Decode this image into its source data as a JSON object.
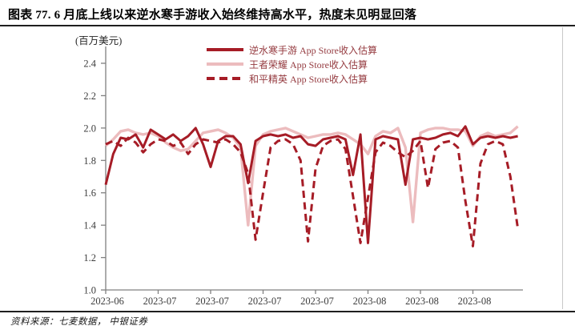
{
  "header": {
    "title": "图表 77. 6 月底上线以来逆水寒手游收入始终维持高水平，热度未见明显回落"
  },
  "footer": {
    "source": "资料来源：七麦数据， 中银证券"
  },
  "chart_data": {
    "type": "line",
    "title": "",
    "unit_label": "(百万美元)",
    "xlabel": "",
    "ylabel": "(百万美元)",
    "ylim": [
      1.0,
      2.4
    ],
    "yticks": [
      1.0,
      1.2,
      1.4,
      1.6,
      1.8,
      2.0,
      2.2,
      2.4
    ],
    "xticklabels": [
      "2023-06",
      "2023-07",
      "2023-07",
      "2023-07",
      "2023-07",
      "2023-08",
      "2023-08",
      "2023-08"
    ],
    "x_tick_interval_days": 7,
    "grid": false,
    "legend_position": "top-center",
    "axis_color": "#808080",
    "tick_label_color": "#3d3d3d",
    "series": [
      {
        "name": "逆水寒手游 App Store收入估算",
        "color": "#a61c26",
        "style": "solid",
        "values": [
          1.65,
          1.84,
          1.94,
          1.93,
          1.96,
          1.88,
          1.99,
          1.96,
          1.93,
          1.96,
          1.92,
          1.95,
          2.0,
          1.9,
          1.76,
          1.92,
          1.95,
          1.95,
          1.9,
          1.66,
          1.92,
          1.95,
          1.96,
          1.95,
          1.96,
          1.94,
          1.95,
          1.9,
          1.89,
          1.93,
          1.94,
          1.95,
          1.93,
          1.71,
          1.96,
          1.29,
          1.93,
          1.95,
          1.94,
          1.93,
          1.65,
          1.93,
          1.94,
          1.93,
          1.94,
          1.96,
          1.97,
          1.95,
          2.01,
          1.9,
          1.94,
          1.95,
          1.94,
          1.95,
          1.94,
          1.95
        ]
      },
      {
        "name": "王者荣耀 App Store收入估算",
        "color": "#ecbcbe",
        "style": "solid",
        "values": [
          1.89,
          1.93,
          1.98,
          1.99,
          1.97,
          1.96,
          1.97,
          1.95,
          1.91,
          1.88,
          1.86,
          1.87,
          1.92,
          1.97,
          1.98,
          1.99,
          1.97,
          1.94,
          1.88,
          1.4,
          1.89,
          1.96,
          1.98,
          1.99,
          2.0,
          1.98,
          1.96,
          1.94,
          1.95,
          1.96,
          1.96,
          1.97,
          1.96,
          1.93,
          1.9,
          1.84,
          1.95,
          1.98,
          1.97,
          2.0,
          1.88,
          1.42,
          1.97,
          1.99,
          2.0,
          2.0,
          1.99,
          1.99,
          1.98,
          1.89,
          1.95,
          1.97,
          1.95,
          1.96,
          1.97,
          2.01
        ]
      },
      {
        "name": "和平精英 App Store收入估算",
        "color": "#a61c26",
        "style": "dashed",
        "values": [
          1.9,
          1.92,
          1.89,
          1.94,
          1.91,
          1.85,
          1.9,
          1.93,
          1.92,
          1.89,
          1.91,
          1.84,
          1.9,
          1.93,
          1.92,
          1.91,
          1.93,
          1.9,
          1.85,
          1.72,
          1.31,
          1.6,
          1.88,
          1.92,
          1.93,
          1.9,
          1.8,
          1.3,
          1.75,
          1.89,
          1.92,
          1.93,
          1.87,
          1.58,
          1.29,
          1.57,
          1.85,
          1.91,
          1.89,
          1.85,
          1.82,
          1.86,
          1.92,
          1.63,
          1.87,
          1.91,
          1.92,
          1.88,
          1.55,
          1.27,
          1.78,
          1.9,
          1.92,
          1.9,
          1.7,
          1.38
        ]
      }
    ]
  }
}
